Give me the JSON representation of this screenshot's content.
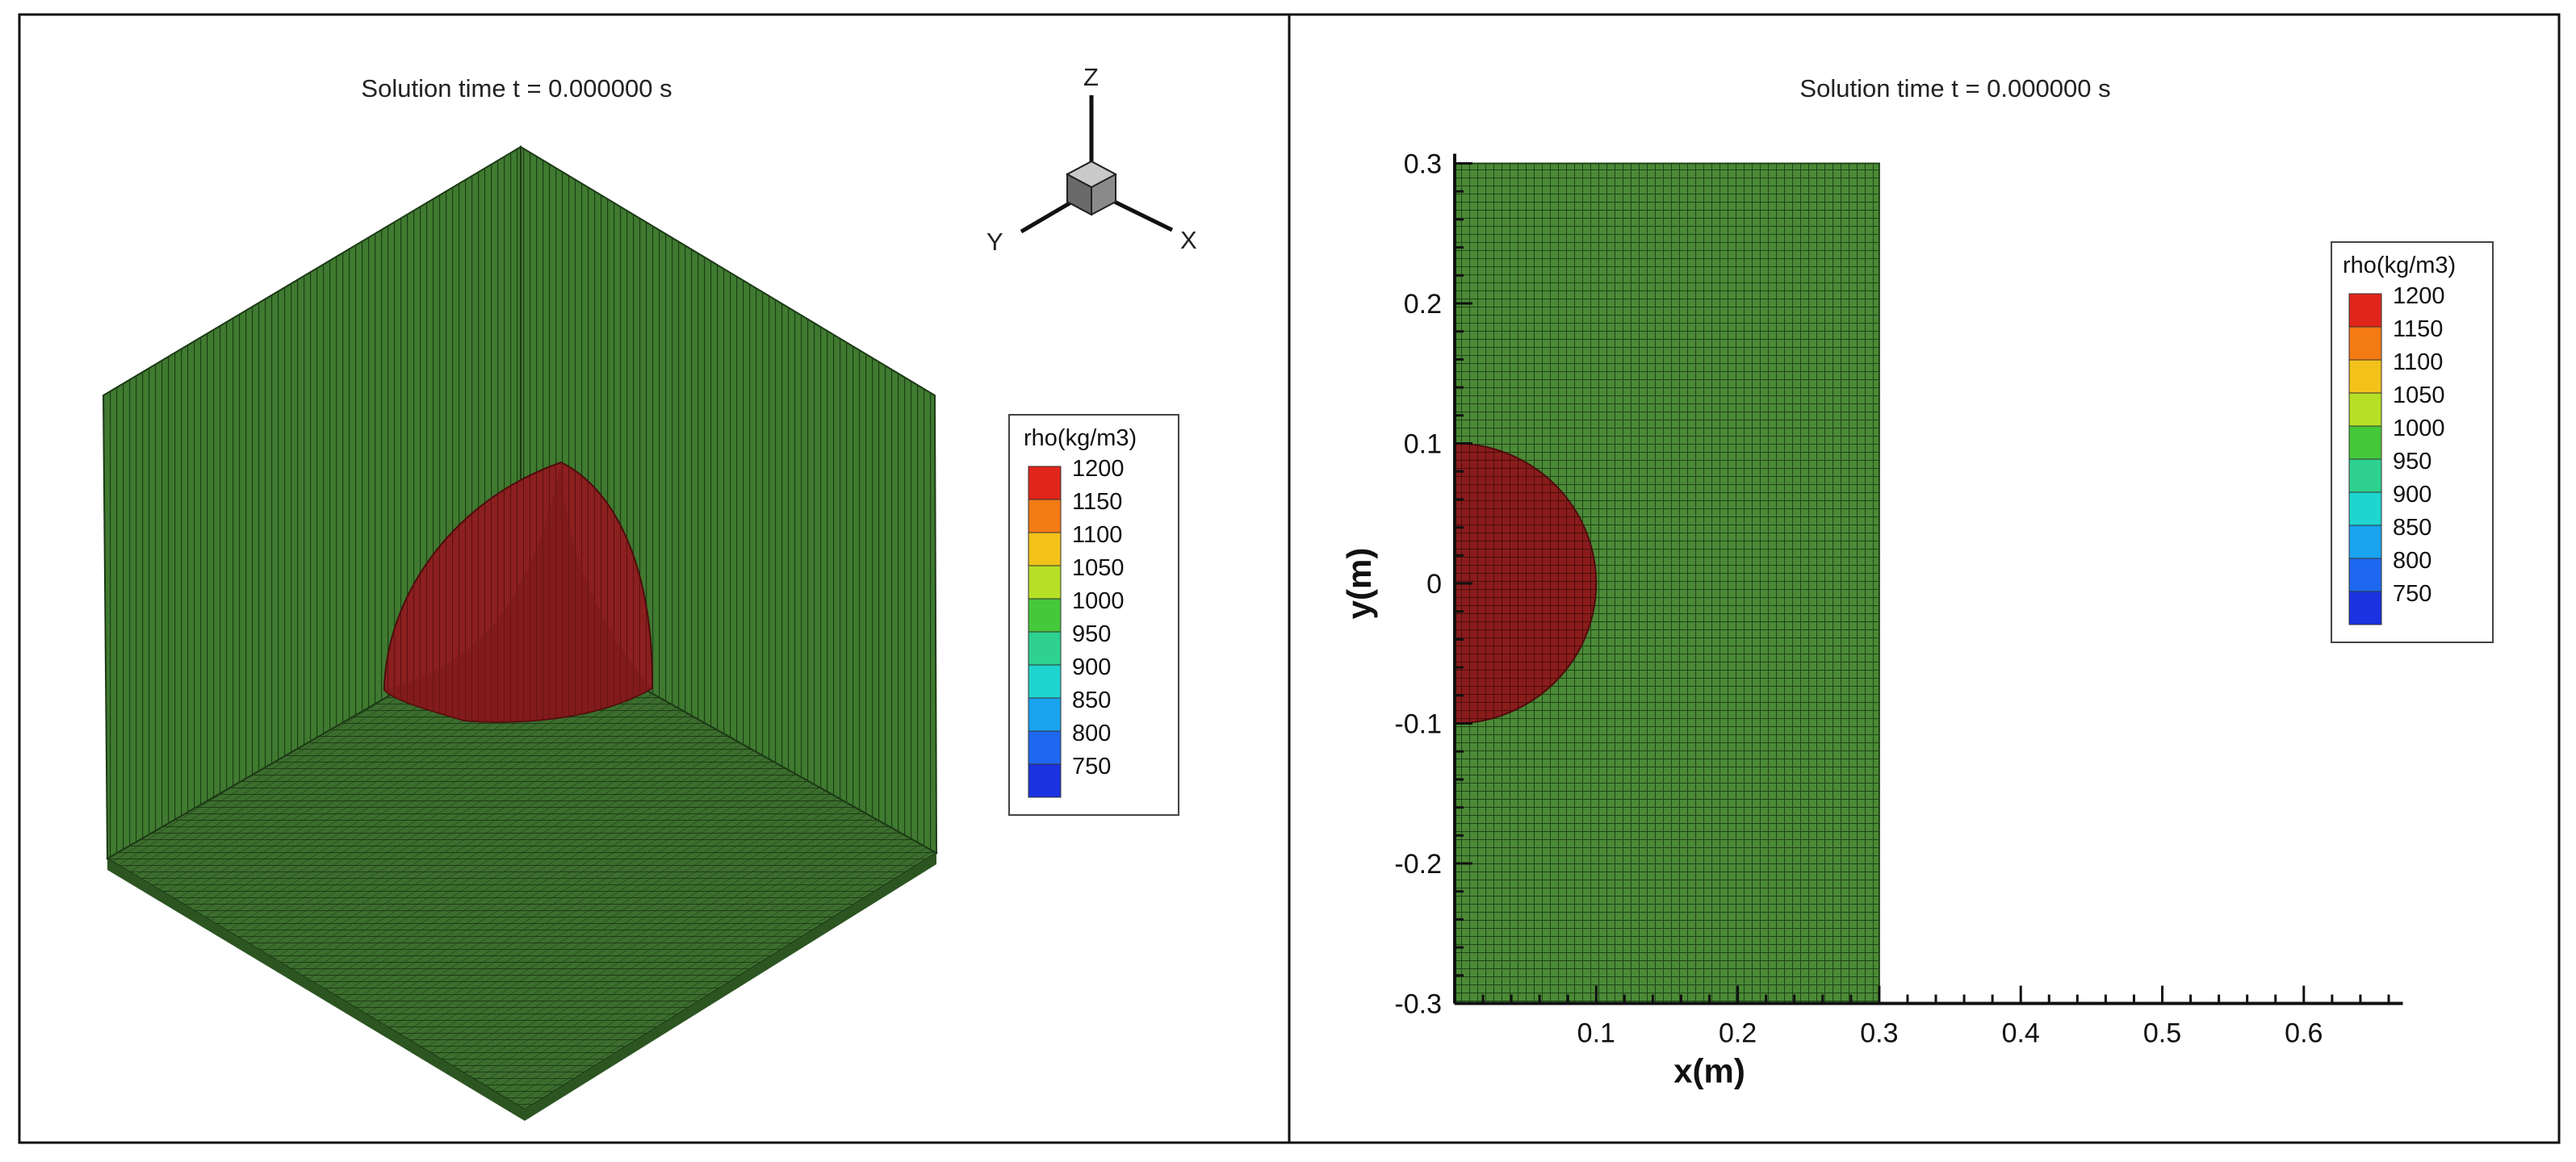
{
  "chart_data": [
    {
      "type": "contour3d",
      "title": "Solution time t = 0.000000 s",
      "axis_triad": [
        "X",
        "Y",
        "Z"
      ],
      "legend": {
        "title": "rho(kg/m3)",
        "levels": [
          1200,
          1150,
          1100,
          1050,
          1000,
          950,
          900,
          850,
          800,
          750
        ],
        "colors": [
          "#e0251b",
          "#f47a14",
          "#f2c21a",
          "#b6e025",
          "#45c83a",
          "#2ed18f",
          "#1fd5cf",
          "#1aa3ee",
          "#1e68f0",
          "#1b32e0"
        ]
      },
      "regions": [
        {
          "name": "fluid",
          "rho": 1000,
          "color": "#3a6b2e"
        },
        {
          "name": "droplet",
          "rho": 1200,
          "color": "#7a1a1a"
        }
      ]
    },
    {
      "type": "contour",
      "title": "Solution time t = 0.000000 s",
      "xlabel": "x(m)",
      "ylabel": "y(m)",
      "xlim": [
        0,
        0.67
      ],
      "ylim": [
        -0.3,
        0.3
      ],
      "xticks": [
        0.1,
        0.2,
        0.3,
        0.4,
        0.5,
        0.6
      ],
      "yticks": [
        0.3,
        0.2,
        0.1,
        0,
        -0.1,
        -0.2,
        -0.3
      ],
      "domain": {
        "x": [
          0,
          0.3
        ],
        "y": [
          -0.3,
          0.3
        ],
        "rho": 1000,
        "color": "#3a6b2e"
      },
      "droplet": {
        "center_x": 0,
        "center_y": 0,
        "radius": 0.1,
        "rho": 1200,
        "color": "#7a1a1a"
      },
      "legend": {
        "title": "rho(kg/m3)",
        "levels": [
          1200,
          1150,
          1100,
          1050,
          1000,
          950,
          900,
          850,
          800,
          750
        ],
        "colors": [
          "#e0251b",
          "#f47a14",
          "#f2c21a",
          "#b6e025",
          "#45c83a",
          "#2ed18f",
          "#1fd5cf",
          "#1aa3ee",
          "#1e68f0",
          "#1b32e0"
        ]
      }
    }
  ]
}
